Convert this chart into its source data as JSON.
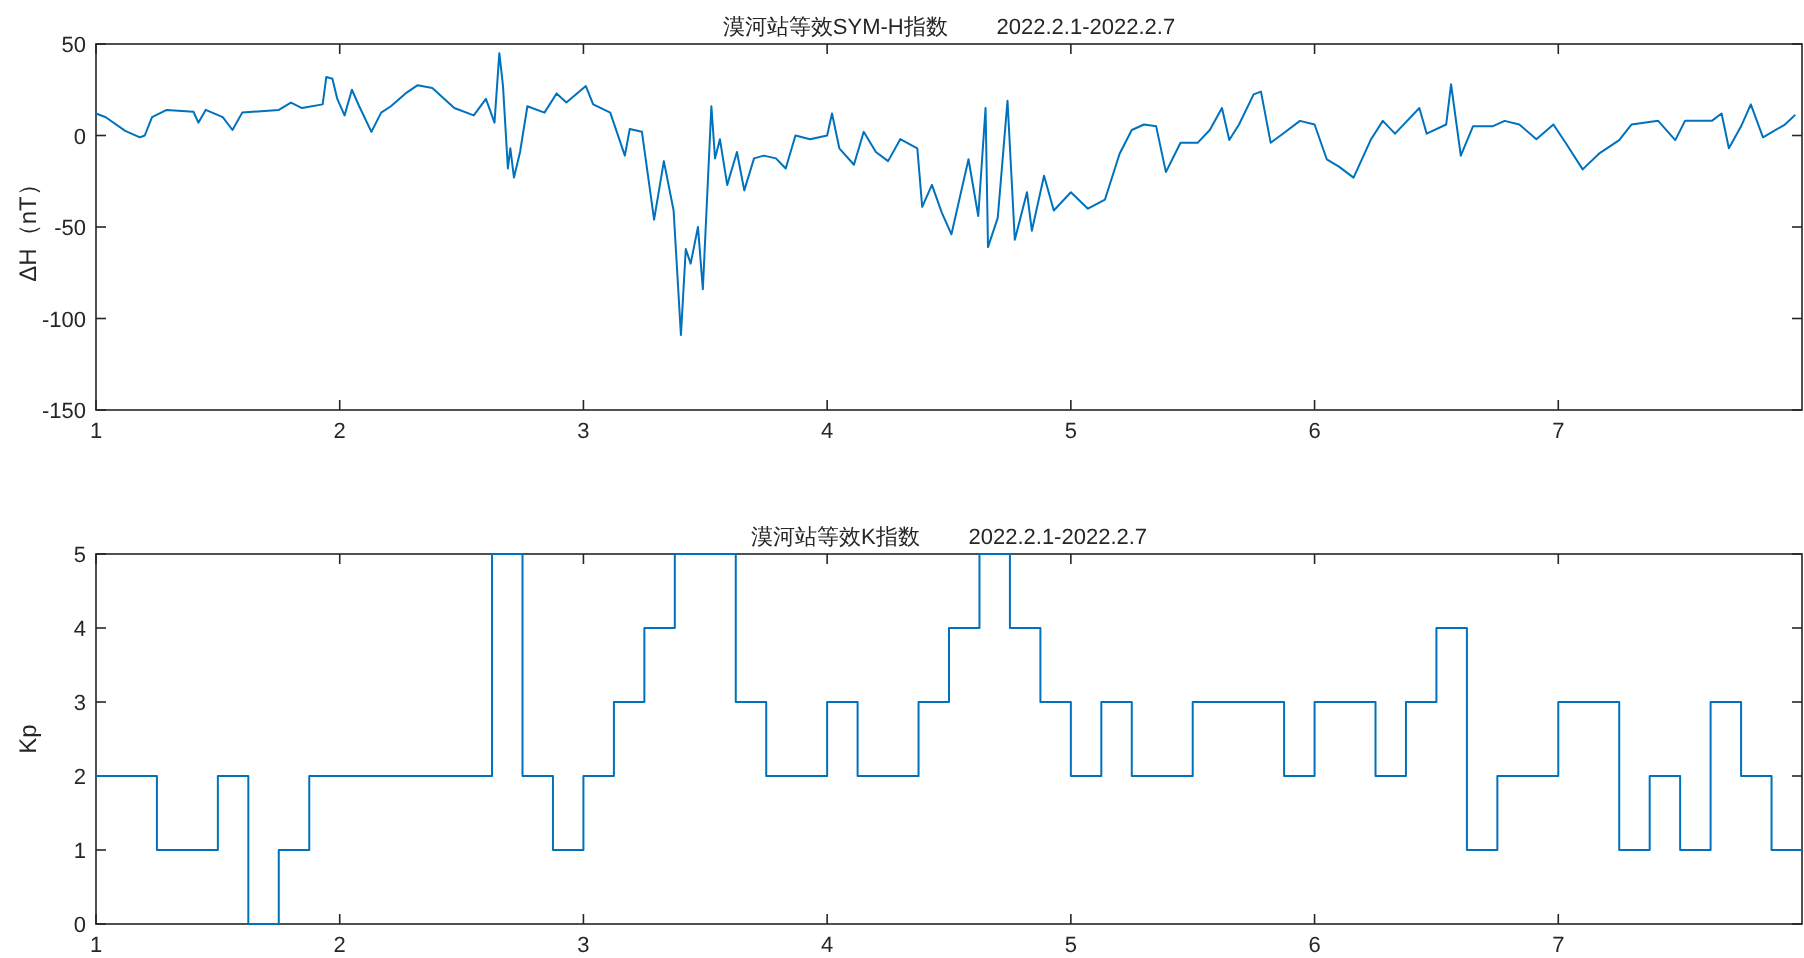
{
  "chart_data": [
    {
      "type": "line",
      "title": "漠河站等效SYM-H指数        2022.2.1-2022.2.7",
      "ylabel": "ΔH（nT）",
      "xlim": [
        1,
        8
      ],
      "ylim": [
        -150,
        50
      ],
      "xticks": [
        1,
        2,
        3,
        4,
        5,
        6,
        7
      ],
      "yticks": [
        -150,
        -100,
        -50,
        0,
        50
      ],
      "x": [
        1.0,
        1.04,
        1.12,
        1.18,
        1.2,
        1.23,
        1.29,
        1.4,
        1.42,
        1.45,
        1.52,
        1.56,
        1.6,
        1.75,
        1.8,
        1.845,
        1.93,
        1.945,
        1.97,
        1.99,
        2.02,
        2.05,
        2.08,
        2.13,
        2.17,
        2.21,
        2.27,
        2.32,
        2.38,
        2.47,
        2.55,
        2.6,
        2.635,
        2.655,
        2.67,
        2.69,
        2.7,
        2.715,
        2.74,
        2.77,
        2.84,
        2.89,
        2.93,
        3.01,
        3.04,
        3.11,
        3.17,
        3.19,
        3.24,
        3.29,
        3.33,
        3.37,
        3.4,
        3.42,
        3.44,
        3.47,
        3.49,
        3.525,
        3.54,
        3.56,
        3.59,
        3.63,
        3.66,
        3.7,
        3.74,
        3.79,
        3.83,
        3.87,
        3.93,
        4.0,
        4.02,
        4.05,
        4.11,
        4.15,
        4.2,
        4.25,
        4.3,
        4.37,
        4.39,
        4.43,
        4.47,
        4.51,
        4.58,
        4.62,
        4.65,
        4.66,
        4.7,
        4.74,
        4.77,
        4.82,
        4.84,
        4.89,
        4.93,
        5.0,
        5.07,
        5.14,
        5.2,
        5.25,
        5.3,
        5.35,
        5.39,
        5.45,
        5.52,
        5.57,
        5.62,
        5.65,
        5.69,
        5.75,
        5.78,
        5.82,
        5.87,
        5.94,
        6.0,
        6.05,
        6.1,
        6.16,
        6.23,
        6.28,
        6.33,
        6.43,
        6.46,
        6.54,
        6.56,
        6.6,
        6.65,
        6.73,
        6.78,
        6.84,
        6.91,
        6.98,
        7.03,
        7.1,
        7.17,
        7.25,
        7.3,
        7.41,
        7.48,
        7.52,
        7.63,
        7.67,
        7.7,
        7.75,
        7.79,
        7.84,
        7.93,
        7.97
      ],
      "series": [
        {
          "color": "#0072bd",
          "values": [
            12,
            10,
            2.5,
            -1,
            0,
            10,
            14,
            13,
            7,
            14,
            10,
            3,
            12.5,
            14,
            18,
            15,
            17,
            32,
            31,
            20,
            11,
            25,
            16,
            2,
            12.5,
            16,
            23,
            27.5,
            26,
            15,
            11,
            20,
            7,
            45,
            27,
            -18,
            -7,
            -23,
            -9,
            16,
            12.5,
            23,
            18,
            27,
            17,
            12.5,
            -11,
            3.5,
            2,
            -46,
            -14,
            -41,
            -109,
            -62,
            -70,
            -50,
            -84,
            16,
            -12.5,
            -2,
            -27,
            -9,
            -30,
            -12.5,
            -11,
            -12.5,
            -18,
            0,
            -2,
            0,
            12,
            -7,
            -16,
            2,
            -9,
            -14,
            -2,
            -7,
            -39,
            -27,
            -42,
            -54,
            -13,
            -44,
            15,
            -61,
            -45,
            19,
            -57,
            -31,
            -52,
            -22,
            -41,
            -31,
            -40,
            -35,
            -10,
            3,
            6,
            5,
            -20,
            -4,
            -4,
            3,
            15,
            -2.5,
            6,
            22.5,
            24,
            -4,
            1,
            8,
            6,
            -13,
            -17,
            -23,
            -2.5,
            8,
            1,
            15,
            1,
            6,
            28,
            -11,
            5,
            5,
            8,
            6,
            -2,
            6,
            -4,
            -18.5,
            -9.6,
            -2.5,
            6,
            8,
            -2.5,
            8,
            8,
            12,
            -7,
            5,
            17,
            -1,
            6,
            11
          ]
        }
      ]
    },
    {
      "type": "step",
      "title": "漠河站等效K指数        2022.2.1-2022.2.7",
      "ylabel": "Kp",
      "xlim": [
        1,
        8
      ],
      "ylim": [
        0,
        5
      ],
      "xticks": [
        1,
        2,
        3,
        4,
        5,
        6,
        7
      ],
      "yticks": [
        0,
        1,
        2,
        3,
        4,
        5
      ],
      "x": [
        1.0,
        1.125,
        1.25,
        1.375,
        1.5,
        1.625,
        1.75,
        1.875,
        2.0,
        2.125,
        2.25,
        2.375,
        2.5,
        2.625,
        2.75,
        2.875,
        3.0,
        3.125,
        3.25,
        3.375,
        3.5,
        3.625,
        3.75,
        3.875,
        4.0,
        4.125,
        4.25,
        4.375,
        4.5,
        4.625,
        4.75,
        4.875,
        5.0,
        5.125,
        5.25,
        5.375,
        5.5,
        5.625,
        5.75,
        5.875,
        6.0,
        6.125,
        6.25,
        6.375,
        6.5,
        6.625,
        6.75,
        6.875,
        7.0,
        7.125,
        7.25,
        7.375,
        7.5,
        7.625,
        7.75,
        7.875,
        8.0
      ],
      "series": [
        {
          "color": "#0072bd",
          "values": [
            2,
            2,
            1,
            1,
            2,
            0,
            1,
            2,
            2,
            2,
            2,
            2,
            2,
            5,
            2,
            1,
            2,
            3,
            4,
            5,
            5,
            3,
            2,
            2,
            3,
            2,
            2,
            3,
            4,
            5,
            4,
            3,
            2,
            3,
            2,
            2,
            3,
            3,
            3,
            2,
            3,
            3,
            2,
            3,
            4,
            1,
            2,
            2,
            3,
            3,
            1,
            2,
            1,
            3,
            2,
            1,
            1
          ]
        }
      ]
    }
  ]
}
